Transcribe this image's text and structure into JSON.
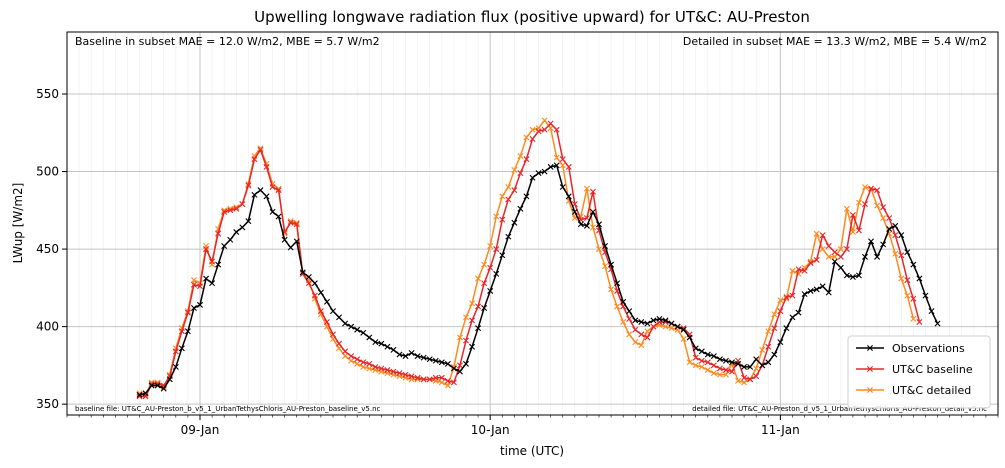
{
  "chart_data": {
    "type": "line",
    "title": "Upwelling longwave radiation flux (positive upward) for UT&C: AU-Preston",
    "xlabel": "time (UTC)",
    "ylabel": "LWup [W/m2]",
    "xlim": [
      "2010-01-08T13:00",
      "2010-01-11T18:00"
    ],
    "ylim": [
      343,
      590
    ],
    "yticks": [
      350,
      400,
      450,
      500,
      550
    ],
    "xticks": [
      {
        "value": "2010-01-09T00:00",
        "label": "09-Jan"
      },
      {
        "value": "2010-01-10T00:00",
        "label": "10-Jan"
      },
      {
        "value": "2010-01-11T00:00",
        "label": "11-Jan"
      }
    ],
    "x_start": "2010-01-08T19:00",
    "x_step_minutes": 30,
    "grid": true,
    "legend_position": "lower-right",
    "annotations": {
      "top_left": "Baseline in subset MAE = 12.0 W/m2, MBE = 5.7 W/m2",
      "top_right": "Detailed in subset MAE = 13.3 W/m2, MBE = 5.4 W/m2",
      "bottom_left": "baseline file: UT&C_AU-Preston_b_v5_1_UrbanTethysChloris_AU-Preston_baseline_v5.nc",
      "bottom_right": "detailed file: UT&C_AU-Preston_d_v5_1_UrbanTethysChloris_AU-Preston_detail_v5.nc"
    },
    "series": [
      {
        "name": "Observations",
        "color": "#000000",
        "values": [
          356,
          357,
          362,
          362,
          360,
          366,
          374,
          386,
          397,
          412,
          414,
          431,
          428,
          440,
          452,
          456,
          461,
          464,
          468,
          485,
          488,
          484,
          474,
          471,
          456,
          451,
          455,
          435,
          432,
          428,
          422,
          416,
          410,
          406,
          402,
          400,
          398,
          396,
          393,
          390,
          389,
          387,
          385,
          382,
          381,
          383,
          381,
          380,
          379,
          378,
          377,
          376,
          373,
          371,
          376,
          387,
          399,
          412,
          423,
          434,
          446,
          458,
          467,
          476,
          484,
          496,
          499,
          500,
          503,
          504,
          490,
          484,
          474,
          466,
          465,
          474,
          466,
          452,
          440,
          428,
          416,
          410,
          404,
          403,
          402,
          404,
          405,
          404,
          402,
          400,
          398,
          393,
          386,
          384,
          382,
          381,
          379,
          378,
          377,
          376,
          374,
          374,
          379,
          375,
          377,
          382,
          390,
          399,
          406,
          409,
          421,
          423,
          424,
          426,
          422,
          442,
          438,
          433,
          432,
          433,
          445,
          455,
          445,
          453,
          463,
          465,
          459,
          448,
          440,
          431,
          420,
          410,
          402
        ]
      },
      {
        "name": "UT&C baseline",
        "color": "#e8262a",
        "values": [
          355,
          355,
          363,
          363,
          362,
          368,
          384,
          397,
          409,
          427,
          426,
          450,
          442,
          460,
          474,
          475,
          476,
          479,
          491,
          508,
          514,
          503,
          490,
          488,
          461,
          467,
          466,
          434,
          428,
          420,
          410,
          403,
          395,
          389,
          384,
          381,
          379,
          377,
          376,
          374,
          373,
          372,
          371,
          370,
          369,
          368,
          367,
          366,
          366,
          367,
          367,
          365,
          364,
          375,
          391,
          404,
          413,
          428,
          438,
          450,
          469,
          482,
          488,
          499,
          508,
          521,
          526,
          527,
          531,
          527,
          508,
          503,
          479,
          469,
          470,
          487,
          462,
          448,
          437,
          423,
          413,
          405,
          398,
          395,
          393,
          400,
          403,
          403,
          402,
          400,
          399,
          395,
          380,
          378,
          377,
          375,
          373,
          372,
          371,
          378,
          367,
          366,
          368,
          375,
          387,
          399,
          410,
          419,
          420,
          437,
          436,
          441,
          443,
          459,
          452,
          448,
          445,
          450,
          472,
          462,
          479,
          489,
          488,
          477,
          470,
          459,
          446,
          430,
          418,
          403
        ]
      },
      {
        "name": "UT&C detailed",
        "color": "#ff8a1d",
        "values": [
          357,
          356,
          364,
          364,
          361,
          369,
          386,
          399,
          410,
          430,
          428,
          452,
          440,
          463,
          475,
          476,
          477,
          479,
          492,
          510,
          515,
          505,
          492,
          489,
          460,
          468,
          467,
          434,
          430,
          418,
          408,
          400,
          392,
          386,
          381,
          378,
          376,
          374,
          373,
          372,
          371,
          370,
          369,
          368,
          367,
          366,
          366,
          366,
          366,
          365,
          364,
          362,
          374,
          393,
          406,
          415,
          431,
          440,
          452,
          471,
          484,
          490,
          501,
          510,
          522,
          527,
          528,
          533,
          528,
          509,
          504,
          481,
          470,
          471,
          489,
          464,
          450,
          439,
          424,
          413,
          403,
          395,
          390,
          388,
          397,
          400,
          401,
          400,
          399,
          398,
          392,
          377,
          375,
          374,
          372,
          370,
          369,
          369,
          376,
          365,
          364,
          366,
          373,
          385,
          397,
          408,
          417,
          418,
          436,
          434,
          438,
          442,
          460,
          450,
          445,
          445,
          450,
          476,
          461,
          480,
          490,
          489,
          478,
          470,
          460,
          447,
          431,
          420,
          405
        ]
      }
    ]
  }
}
